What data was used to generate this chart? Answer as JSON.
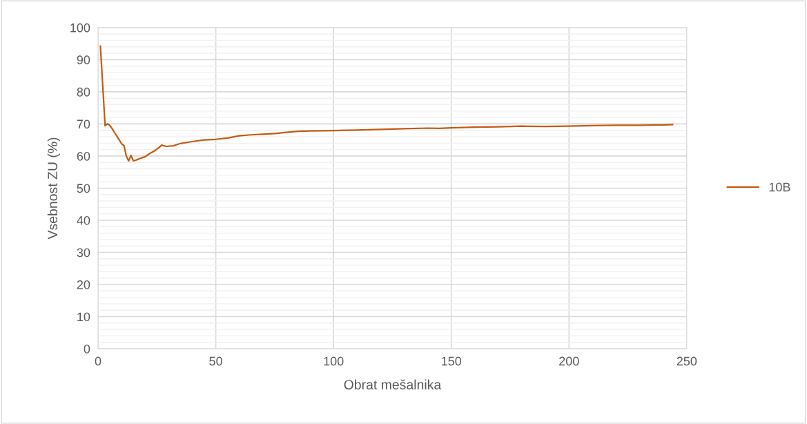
{
  "chart_data": {
    "type": "line",
    "xlabel": "Obrat mešalnika",
    "ylabel": "Vsebnost ZU (%)",
    "xlim": [
      0,
      250
    ],
    "xticks": [
      0,
      50,
      100,
      150,
      200,
      250
    ],
    "ylim": [
      0,
      100
    ],
    "yticks": [
      0,
      10,
      20,
      30,
      40,
      50,
      60,
      70,
      80,
      90,
      100
    ],
    "grid": true,
    "legend": "right",
    "marker": "none",
    "line_style": "solid",
    "series": [
      {
        "name": "10B",
        "color": "#c55a11",
        "x": [
          1,
          3,
          4,
          5,
          6,
          7,
          8,
          9,
          10,
          11,
          12,
          13,
          14,
          15,
          16,
          17,
          18,
          20,
          22,
          24,
          26,
          27,
          29,
          32,
          35,
          40,
          45,
          50,
          55,
          60,
          65,
          70,
          75,
          80,
          85,
          90,
          100,
          110,
          120,
          130,
          140,
          145,
          150,
          160,
          170,
          180,
          190,
          200,
          210,
          220,
          230,
          240,
          244
        ],
        "values": [
          94.2,
          69.4,
          70,
          69.5,
          68.5,
          67.3,
          66.2,
          65,
          63.8,
          63.3,
          60,
          58.5,
          60.2,
          58.5,
          58.7,
          59,
          59.3,
          59.8,
          60.8,
          61.6,
          62.7,
          63.4,
          63,
          63.2,
          63.9,
          64.5,
          65,
          65.2,
          65.6,
          66.3,
          66.6,
          66.8,
          67,
          67.4,
          67.7,
          67.8,
          67.9,
          68.1,
          68.3,
          68.5,
          68.7,
          68.6,
          68.8,
          69,
          69.1,
          69.3,
          69.2,
          69.3,
          69.5,
          69.6,
          69.6,
          69.7,
          69.8
        ]
      }
    ]
  }
}
